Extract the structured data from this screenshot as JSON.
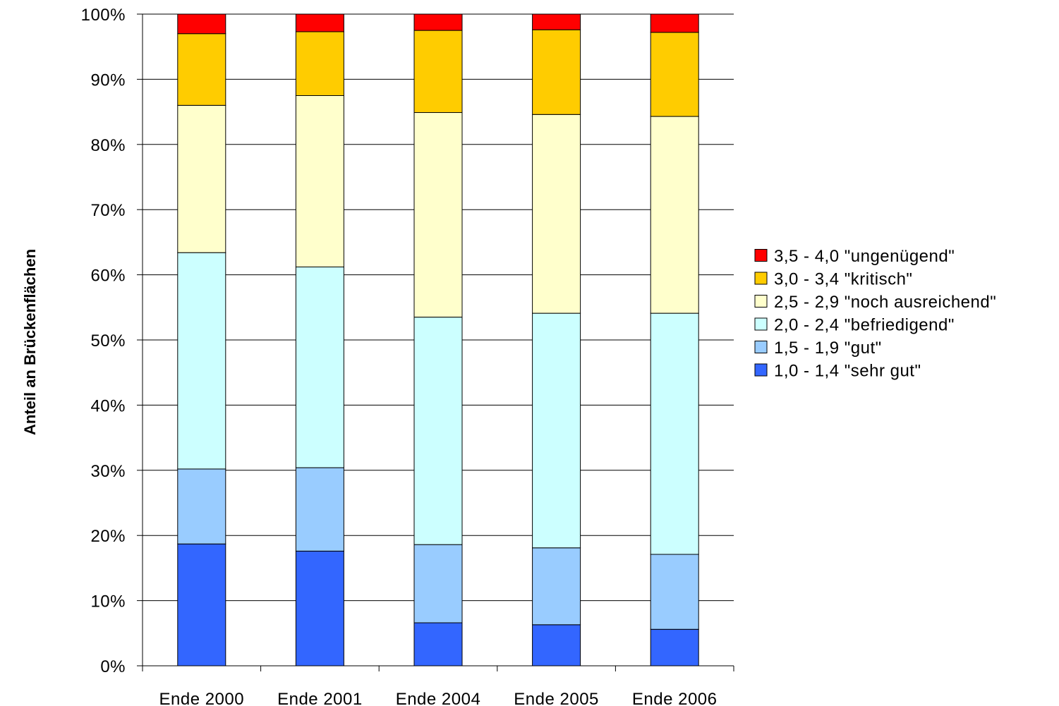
{
  "chart_data": {
    "type": "bar",
    "stacked": true,
    "percent_stacked": true,
    "ylabel": "Anteil an Brückenflächen",
    "ylim": [
      0,
      100
    ],
    "y_ticks": [
      "0%",
      "10%",
      "20%",
      "30%",
      "40%",
      "50%",
      "60%",
      "70%",
      "80%",
      "90%",
      "100%"
    ],
    "categories": [
      "Ende 2000",
      "Ende 2001",
      "Ende 2004",
      "Ende 2005",
      "Ende 2006"
    ],
    "grid": true,
    "legend_position": "right",
    "series": [
      {
        "name": "1,0 - 1,4 \"sehr gut\"",
        "color": "#3366ff",
        "values": [
          18.7,
          17.6,
          6.6,
          6.3,
          5.6
        ]
      },
      {
        "name": "1,5 - 1,9 \"gut\"",
        "color": "#99ccff",
        "values": [
          11.5,
          12.8,
          12.0,
          11.8,
          11.5
        ]
      },
      {
        "name": "2,0 - 2,4 \"befriedigend\"",
        "color": "#ccffff",
        "values": [
          33.2,
          30.8,
          34.9,
          36.0,
          37.0
        ]
      },
      {
        "name": "2,5 - 2,9 \"noch ausreichend\"",
        "color": "#ffffcc",
        "values": [
          22.6,
          26.3,
          31.4,
          30.5,
          30.2
        ]
      },
      {
        "name": "3,0 - 3,4 \"kritisch\"",
        "color": "#ffcc00",
        "values": [
          11.0,
          9.8,
          12.6,
          13.0,
          12.9
        ]
      },
      {
        "name": "3,5 - 4,0 \"ungenügend\"",
        "color": "#ff0000",
        "values": [
          3.0,
          2.7,
          2.5,
          2.4,
          2.8
        ]
      }
    ]
  }
}
